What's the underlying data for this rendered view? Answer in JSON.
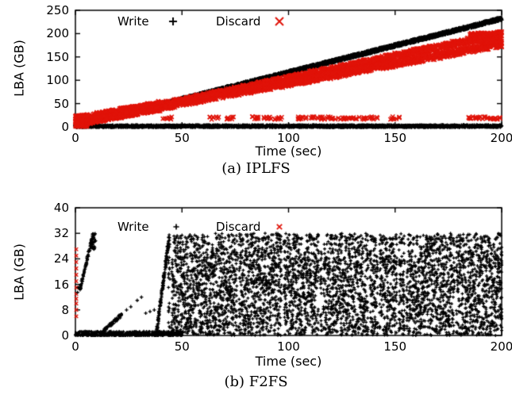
{
  "figure": {
    "background": "#ffffff"
  },
  "colors": {
    "write": "#000000",
    "discard": "#e01309"
  },
  "chart_data": [
    {
      "type": "scatter",
      "caption": "(a) IPLFS",
      "xlabel": "Time (sec)",
      "ylabel": "LBA (GB)",
      "xlim": [
        0,
        200
      ],
      "ylim": [
        0,
        250
      ],
      "grid": false,
      "legend_position": "top-inside",
      "xticks": [
        {
          "v": 0,
          "label": "0"
        },
        {
          "v": 50,
          "label": "50"
        },
        {
          "v": 100,
          "label": "100"
        },
        {
          "v": 150,
          "label": "150"
        },
        {
          "v": 200,
          "label": "200"
        }
      ],
      "yticks": [
        {
          "v": 0,
          "label": "0"
        },
        {
          "v": 50,
          "label": "50"
        },
        {
          "v": 100,
          "label": "100"
        },
        {
          "v": 150,
          "label": "150"
        },
        {
          "v": 200,
          "label": "200"
        },
        {
          "v": 250,
          "label": "250"
        }
      ],
      "legend": [
        {
          "label": "Write",
          "marker": "plus",
          "color": "#000000"
        },
        {
          "label": "Discard",
          "marker": "cross",
          "color": "#e01309"
        }
      ],
      "series": [
        {
          "name": "write-diagonal",
          "kind": "band",
          "marker": "plus",
          "color": "#000000",
          "size": 2.5,
          "lw": 1.4,
          "from": [
            0,
            2
          ],
          "to": [
            200,
            232
          ],
          "n": 3800,
          "jy": 3,
          "jx": 0.5
        },
        {
          "name": "write-baseline",
          "kind": "band",
          "marker": "plus",
          "color": "#000000",
          "size": 2.4,
          "lw": 1.3,
          "from": [
            0,
            1.5
          ],
          "to": [
            200,
            1.5
          ],
          "n": 2600,
          "jy": 2,
          "jx": 0
        },
        {
          "name": "write-origin-blob",
          "kind": "rect",
          "marker": "plus",
          "color": "#000000",
          "size": 2.2,
          "lw": 1.2,
          "x0": 0,
          "x1": 3,
          "y0": 0,
          "y1": 14,
          "n": 120
        },
        {
          "name": "discard-upper-diagonal",
          "kind": "band",
          "marker": "cross",
          "color": "#e01309",
          "size": 2.6,
          "lw": 1.5,
          "from": [
            2,
            10
          ],
          "to": [
            200,
            200
          ],
          "n": 1700,
          "jy": 6,
          "jx": 1
        },
        {
          "name": "discard-lower-diagonal",
          "kind": "band",
          "marker": "cross",
          "color": "#e01309",
          "size": 2.6,
          "lw": 1.5,
          "from": [
            30,
            35
          ],
          "to": [
            200,
            178
          ],
          "n": 1400,
          "jy": 7,
          "jx": 1
        },
        {
          "name": "discard-start-wedge",
          "kind": "band",
          "marker": "cross",
          "color": "#e01309",
          "size": 2.4,
          "lw": 1.4,
          "from": [
            0,
            12
          ],
          "to": [
            40,
            45
          ],
          "n": 900,
          "jy": 11,
          "jx": 1
        },
        {
          "name": "discard-origin-blob",
          "kind": "rect",
          "marker": "cross",
          "color": "#e01309",
          "size": 2.4,
          "lw": 1.4,
          "x0": 0,
          "x1": 6,
          "y0": 0,
          "y1": 25,
          "n": 220
        },
        {
          "name": "discard-low-clusters",
          "kind": "clusters",
          "marker": "cross",
          "color": "#e01309",
          "size": 2.6,
          "lw": 1.5,
          "y": 19,
          "sy": 3,
          "sx": 2.2,
          "n_per": 8,
          "xs": [
            43,
            65,
            72,
            85,
            90,
            95,
            105,
            110,
            115,
            120,
            125,
            130,
            135,
            140,
            150,
            186,
            190,
            194,
            198
          ]
        },
        {
          "name": "discard-end-blob",
          "kind": "rect",
          "marker": "cross",
          "color": "#e01309",
          "size": 2.6,
          "lw": 1.5,
          "x0": 185,
          "x1": 200,
          "y0": 180,
          "y1": 202,
          "n": 240
        }
      ]
    },
    {
      "type": "scatter",
      "caption": "(b) F2FS",
      "xlabel": "Time (sec)",
      "ylabel": "LBA (GB)",
      "xlim": [
        0,
        200
      ],
      "ylim": [
        0,
        40
      ],
      "grid": false,
      "legend_position": "top-inside",
      "xticks": [
        {
          "v": 0,
          "label": "0"
        },
        {
          "v": 50,
          "label": "50"
        },
        {
          "v": 100,
          "label": "100"
        },
        {
          "v": 150,
          "label": "150"
        },
        {
          "v": 200,
          "label": "200"
        }
      ],
      "yticks": [
        {
          "v": 0,
          "label": "0"
        },
        {
          "v": 8,
          "label": "8"
        },
        {
          "v": 16,
          "label": "16"
        },
        {
          "v": 24,
          "label": "24"
        },
        {
          "v": 32,
          "label": "32"
        },
        {
          "v": 40,
          "label": "40"
        }
      ],
      "legend": [
        {
          "label": "Write",
          "marker": "plus",
          "color": "#000000"
        },
        {
          "label": "Discard",
          "marker": "cross",
          "color": "#e01309"
        }
      ],
      "series": [
        {
          "name": "discard-start-column",
          "kind": "points",
          "marker": "cross",
          "color": "#e01309",
          "size": 2.2,
          "lw": 1.4,
          "pts": [
            [
              0.4,
              6
            ],
            [
              0.4,
              8
            ],
            [
              0.4,
              10
            ],
            [
              0.4,
              11.5
            ],
            [
              0.4,
              13
            ],
            [
              0.4,
              15
            ],
            [
              0.4,
              17
            ],
            [
              0.4,
              19
            ],
            [
              0.4,
              21
            ],
            [
              0.4,
              23
            ],
            [
              0.4,
              25
            ],
            [
              0.4,
              27
            ]
          ]
        },
        {
          "name": "write-baseline",
          "kind": "band",
          "marker": "plus",
          "color": "#000000",
          "size": 2,
          "lw": 1.3,
          "from": [
            0,
            0.5
          ],
          "to": [
            50,
            0.5
          ],
          "n": 420,
          "jy": 0.8,
          "jx": 0
        },
        {
          "name": "write-early-points",
          "kind": "points",
          "marker": "plus",
          "color": "#000000",
          "size": 2.2,
          "lw": 1.3,
          "pts": [
            [
              1,
              13.5
            ],
            [
              1.3,
              15
            ],
            [
              24,
              8
            ],
            [
              26,
              9
            ],
            [
              29,
              11
            ],
            [
              31,
              12
            ],
            [
              33,
              7
            ],
            [
              35,
              7.5
            ],
            [
              37,
              8
            ]
          ]
        },
        {
          "name": "write-ramp-1",
          "kind": "band",
          "marker": "plus",
          "color": "#000000",
          "size": 2,
          "lw": 1.3,
          "from": [
            2,
            14
          ],
          "to": [
            8,
            31
          ],
          "n": 80,
          "jy": 0.5,
          "jx": 0.2
        },
        {
          "name": "write-ramp-1-top",
          "kind": "rect",
          "marker": "plus",
          "color": "#000000",
          "size": 2,
          "lw": 1.3,
          "x0": 7.5,
          "x1": 9.5,
          "y0": 27,
          "y1": 32,
          "n": 40
        },
        {
          "name": "write-ramp-2",
          "kind": "band",
          "marker": "plus",
          "color": "#000000",
          "size": 2,
          "lw": 1.3,
          "from": [
            13,
            1.5
          ],
          "to": [
            22,
            6.5
          ],
          "n": 60,
          "jy": 0.6,
          "jx": 0.3
        },
        {
          "name": "write-ramp-3",
          "kind": "band",
          "marker": "plus",
          "color": "#000000",
          "size": 2,
          "lw": 1.3,
          "from": [
            38,
            0.5
          ],
          "to": [
            44,
            31
          ],
          "n": 140,
          "jy": 0.5,
          "jx": 0.3
        },
        {
          "name": "write-dense-region",
          "kind": "columns",
          "marker": "plus",
          "color": "#000000",
          "size": 2,
          "lw": 1.25,
          "x0": 44,
          "x1": 200,
          "step": 0.75,
          "ymin": 0,
          "top_base": 32,
          "dip_p": 0.28,
          "dip_depth": 9,
          "skip_p": 0.055,
          "n_per": 22
        }
      ]
    }
  ]
}
